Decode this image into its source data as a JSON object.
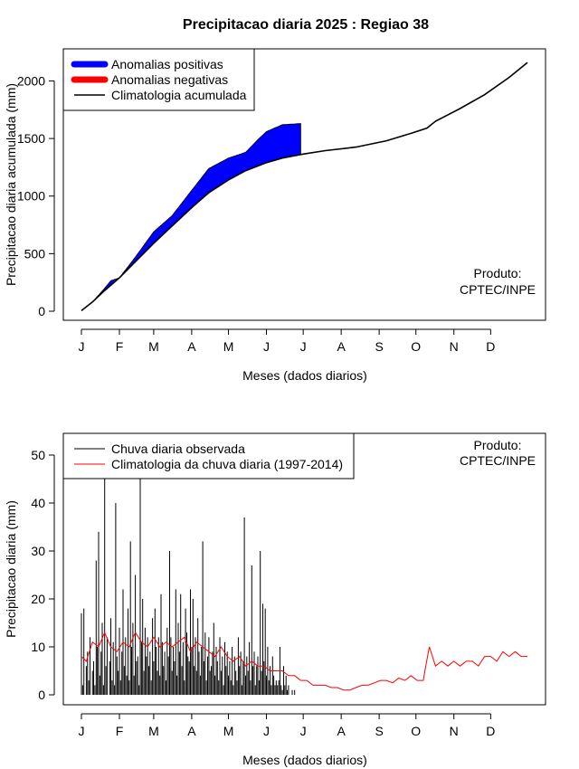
{
  "title": "Precipitacao diaria 2025 : Regiao 38",
  "colors": {
    "positive": "#0000ff",
    "negative": "#ff0000",
    "climatology_line": "#000000",
    "observed_bar": "#000000",
    "daily_climatology": "#ff0000"
  },
  "chart_data": [
    {
      "type": "area",
      "xlabel": "Meses (dados diarios)",
      "ylabel": "Precipitacao diaria acumulada (mm)",
      "xlim": [
        1,
        365
      ],
      "ylim": [
        0,
        2200
      ],
      "x_ticks": [
        {
          "day": 1,
          "label": "J"
        },
        {
          "day": 32,
          "label": "F"
        },
        {
          "day": 60,
          "label": "M"
        },
        {
          "day": 91,
          "label": "A"
        },
        {
          "day": 121,
          "label": "M"
        },
        {
          "day": 152,
          "label": "J"
        },
        {
          "day": 182,
          "label": "J"
        },
        {
          "day": 213,
          "label": "A"
        },
        {
          "day": 244,
          "label": "S"
        },
        {
          "day": 274,
          "label": "O"
        },
        {
          "day": 305,
          "label": "N"
        },
        {
          "day": 335,
          "label": "D"
        }
      ],
      "y_ticks": [
        0,
        500,
        1000,
        1500,
        2000
      ],
      "legend": {
        "position": "top-left",
        "entries": [
          "Anomalias positivas",
          "Anomalias negativas",
          "Climatologia acumulada"
        ]
      },
      "annotation": [
        "Produto:",
        "CPTEC/INPE"
      ],
      "climatology": {
        "name": "Climatologia acumulada",
        "x": [
          1,
          10,
          20,
          32,
          45,
          60,
          75,
          91,
          105,
          121,
          135,
          152,
          165,
          182,
          200,
          225,
          250,
          270,
          283,
          290,
          310,
          330,
          350,
          365
        ],
        "y": [
          5,
          80,
          180,
          290,
          430,
          590,
          740,
          900,
          1030,
          1140,
          1220,
          1290,
          1330,
          1365,
          1395,
          1425,
          1480,
          1545,
          1590,
          1650,
          1760,
          1880,
          2030,
          2160
        ]
      },
      "observed": {
        "name": "Anomalias positivas",
        "x": [
          1,
          10,
          20,
          25,
          32,
          45,
          60,
          75,
          91,
          105,
          121,
          135,
          145,
          152,
          165,
          180
        ],
        "y": [
          5,
          80,
          200,
          265,
          290,
          470,
          690,
          830,
          1050,
          1240,
          1330,
          1380,
          1490,
          1560,
          1620,
          1630
        ]
      }
    },
    {
      "type": "bar",
      "xlabel": "Meses (dados diarios)",
      "ylabel": "Precipitacao diaria (mm)",
      "xlim": [
        1,
        365
      ],
      "ylim": [
        0,
        50
      ],
      "x_ticks": [
        {
          "day": 1,
          "label": "J"
        },
        {
          "day": 32,
          "label": "F"
        },
        {
          "day": 60,
          "label": "M"
        },
        {
          "day": 91,
          "label": "A"
        },
        {
          "day": 121,
          "label": "M"
        },
        {
          "day": 152,
          "label": "J"
        },
        {
          "day": 182,
          "label": "J"
        },
        {
          "day": 213,
          "label": "A"
        },
        {
          "day": 244,
          "label": "S"
        },
        {
          "day": 274,
          "label": "O"
        },
        {
          "day": 305,
          "label": "N"
        },
        {
          "day": 335,
          "label": "D"
        }
      ],
      "y_ticks": [
        0,
        10,
        20,
        30,
        40,
        50
      ],
      "legend": {
        "position": "top-left",
        "entries": [
          "Chuva diaria observada",
          "Climatologia da chuva diaria (1997-2014)"
        ]
      },
      "annotation": [
        "Produto:",
        "CPTEC/INPE"
      ],
      "observed_daily": {
        "name": "Chuva diaria observada",
        "x": [
          1,
          2,
          3,
          4,
          5,
          6,
          7,
          8,
          9,
          10,
          11,
          12,
          13,
          14,
          15,
          16,
          17,
          18,
          19,
          20,
          21,
          22,
          23,
          24,
          25,
          26,
          27,
          28,
          29,
          30,
          31,
          32,
          33,
          34,
          35,
          36,
          37,
          38,
          39,
          40,
          41,
          42,
          43,
          44,
          45,
          46,
          47,
          48,
          49,
          50,
          51,
          52,
          53,
          54,
          55,
          56,
          57,
          58,
          59,
          60,
          61,
          62,
          63,
          64,
          65,
          66,
          67,
          68,
          69,
          70,
          71,
          72,
          73,
          74,
          75,
          76,
          77,
          78,
          79,
          80,
          81,
          82,
          83,
          84,
          85,
          86,
          87,
          88,
          89,
          90,
          91,
          92,
          93,
          94,
          95,
          96,
          97,
          98,
          99,
          100,
          101,
          102,
          103,
          104,
          105,
          106,
          107,
          108,
          109,
          110,
          111,
          112,
          113,
          114,
          115,
          116,
          117,
          118,
          119,
          120,
          121,
          122,
          123,
          124,
          125,
          126,
          127,
          128,
          129,
          130,
          131,
          132,
          133,
          134,
          135,
          136,
          137,
          138,
          139,
          140,
          141,
          142,
          143,
          144,
          145,
          146,
          147,
          148,
          149,
          150,
          151,
          152,
          153,
          154,
          155,
          156,
          157,
          158,
          159,
          160,
          161,
          162,
          163,
          164,
          165,
          166,
          167,
          168,
          169,
          170,
          171,
          172,
          173,
          174,
          175,
          176,
          177,
          178,
          179,
          180
        ],
        "y": [
          17,
          2,
          18,
          0,
          6,
          9,
          3,
          12,
          0,
          5,
          7,
          2,
          28,
          10,
          34,
          4,
          9,
          15,
          2,
          45,
          6,
          12,
          0,
          7,
          16,
          3,
          11,
          2,
          40,
          8,
          5,
          14,
          3,
          9,
          22,
          6,
          12,
          4,
          18,
          3,
          32,
          10,
          15,
          4,
          25,
          7,
          8,
          2,
          45,
          11,
          20,
          5,
          14,
          8,
          12,
          6,
          9,
          3,
          16,
          7,
          18,
          10,
          5,
          12,
          4,
          21,
          11,
          6,
          9,
          3,
          14,
          8,
          30,
          12,
          5,
          10,
          7,
          22,
          4,
          15,
          9,
          21,
          6,
          11,
          3,
          18,
          13,
          8,
          7,
          22,
          10,
          20,
          6,
          12,
          5,
          16,
          9,
          4,
          10,
          32,
          7,
          13,
          3,
          8,
          12,
          5,
          6,
          9,
          15,
          4,
          10,
          7,
          3,
          12,
          5,
          8,
          2,
          11,
          6,
          9,
          4,
          7,
          3,
          10,
          2,
          8,
          5,
          3,
          12,
          6,
          9,
          2,
          7,
          37,
          4,
          8,
          5,
          11,
          3,
          27,
          6,
          9,
          2,
          6,
          8,
          3,
          30,
          5,
          19,
          7,
          18,
          4,
          10,
          3,
          6,
          2,
          8,
          4,
          2,
          3,
          2,
          3,
          10,
          2,
          1,
          6,
          2,
          4,
          1,
          2,
          0,
          0,
          1,
          0,
          1,
          0,
          0,
          0,
          0,
          0
        ]
      },
      "daily_climatology": {
        "name": "Climatologia da chuva diaria (1997-2014)",
        "x": [
          1,
          5,
          10,
          15,
          20,
          25,
          30,
          35,
          40,
          45,
          50,
          55,
          60,
          65,
          70,
          75,
          80,
          85,
          90,
          95,
          100,
          105,
          110,
          115,
          120,
          125,
          130,
          135,
          140,
          145,
          150,
          155,
          160,
          165,
          170,
          175,
          180,
          185,
          190,
          195,
          200,
          205,
          210,
          215,
          220,
          225,
          230,
          235,
          240,
          245,
          250,
          255,
          260,
          265,
          270,
          275,
          280,
          282,
          285,
          290,
          295,
          300,
          305,
          310,
          315,
          320,
          325,
          330,
          335,
          340,
          345,
          350,
          355,
          360,
          365
        ],
        "y": [
          8,
          7,
          11,
          10,
          13,
          10,
          9,
          11,
          10,
          13,
          11,
          10,
          12,
          10,
          11,
          10,
          11,
          12,
          9,
          11,
          10,
          9,
          8,
          10,
          8,
          7,
          8,
          6,
          7,
          6,
          6,
          5,
          5,
          5,
          4,
          4,
          3,
          3,
          2,
          2,
          2,
          1.5,
          1.5,
          1,
          1,
          1.5,
          2,
          2,
          2.5,
          3,
          3,
          2.5,
          3.5,
          3,
          4,
          3,
          3,
          6,
          10,
          6,
          7,
          6,
          7,
          6,
          7,
          7,
          6,
          8,
          8,
          7,
          9,
          8,
          9,
          8,
          8
        ]
      }
    }
  ]
}
